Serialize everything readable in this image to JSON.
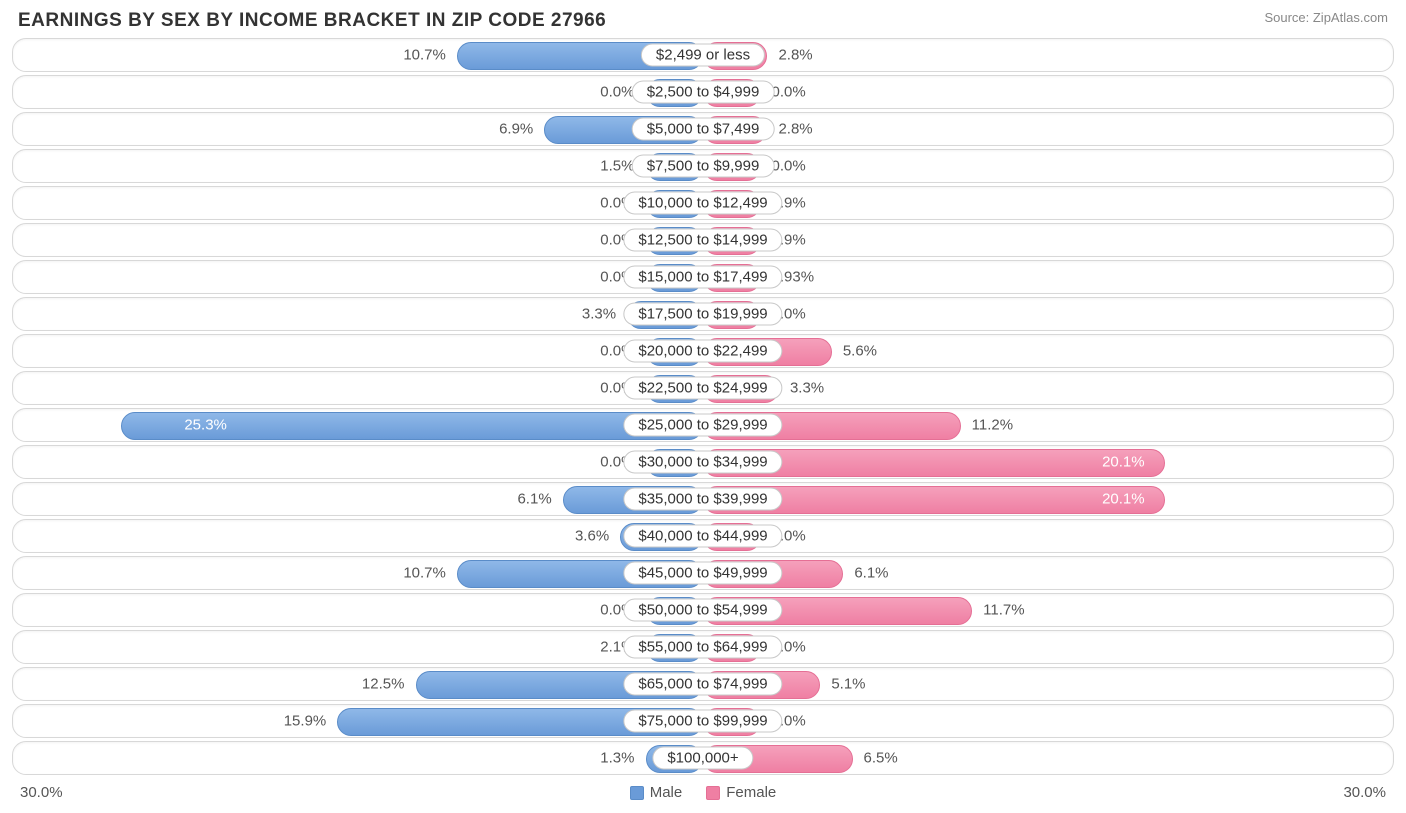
{
  "title": "EARNINGS BY SEX BY INCOME BRACKET IN ZIP CODE 27966",
  "source": "Source: ZipAtlas.com",
  "axis_max_label": "30.0%",
  "axis_max_value": 30.0,
  "legend": {
    "male": "Male",
    "female": "Female"
  },
  "colors": {
    "male_bar": "#6a9bd8",
    "male_border": "#5a8cc8",
    "female_bar": "#ef7fa3",
    "female_border": "#e56f95",
    "track_border": "#d8d8d8",
    "background": "#ffffff",
    "text": "#555555"
  },
  "chart": {
    "type": "diverging-bar",
    "min_bar_pct": 2.5,
    "label_inside_threshold": 18.0,
    "rows": [
      {
        "label": "$2,499 or less",
        "male": 10.7,
        "female": 2.8,
        "male_txt": "10.7%",
        "female_txt": "2.8%"
      },
      {
        "label": "$2,500 to $4,999",
        "male": 0.0,
        "female": 0.0,
        "male_txt": "0.0%",
        "female_txt": "0.0%"
      },
      {
        "label": "$5,000 to $7,499",
        "male": 6.9,
        "female": 2.8,
        "male_txt": "6.9%",
        "female_txt": "2.8%"
      },
      {
        "label": "$7,500 to $9,999",
        "male": 1.5,
        "female": 0.0,
        "male_txt": "1.5%",
        "female_txt": "0.0%"
      },
      {
        "label": "$10,000 to $12,499",
        "male": 0.0,
        "female": 1.9,
        "male_txt": "0.0%",
        "female_txt": "1.9%"
      },
      {
        "label": "$12,500 to $14,999",
        "male": 0.0,
        "female": 1.9,
        "male_txt": "0.0%",
        "female_txt": "1.9%"
      },
      {
        "label": "$15,000 to $17,499",
        "male": 0.0,
        "female": 0.93,
        "male_txt": "0.0%",
        "female_txt": "0.93%"
      },
      {
        "label": "$17,500 to $19,999",
        "male": 3.3,
        "female": 0.0,
        "male_txt": "3.3%",
        "female_txt": "0.0%"
      },
      {
        "label": "$20,000 to $22,499",
        "male": 0.0,
        "female": 5.6,
        "male_txt": "0.0%",
        "female_txt": "5.6%"
      },
      {
        "label": "$22,500 to $24,999",
        "male": 0.0,
        "female": 3.3,
        "male_txt": "0.0%",
        "female_txt": "3.3%"
      },
      {
        "label": "$25,000 to $29,999",
        "male": 25.3,
        "female": 11.2,
        "male_txt": "25.3%",
        "female_txt": "11.2%"
      },
      {
        "label": "$30,000 to $34,999",
        "male": 0.0,
        "female": 20.1,
        "male_txt": "0.0%",
        "female_txt": "20.1%"
      },
      {
        "label": "$35,000 to $39,999",
        "male": 6.1,
        "female": 20.1,
        "male_txt": "6.1%",
        "female_txt": "20.1%"
      },
      {
        "label": "$40,000 to $44,999",
        "male": 3.6,
        "female": 0.0,
        "male_txt": "3.6%",
        "female_txt": "0.0%"
      },
      {
        "label": "$45,000 to $49,999",
        "male": 10.7,
        "female": 6.1,
        "male_txt": "10.7%",
        "female_txt": "6.1%"
      },
      {
        "label": "$50,000 to $54,999",
        "male": 0.0,
        "female": 11.7,
        "male_txt": "0.0%",
        "female_txt": "11.7%"
      },
      {
        "label": "$55,000 to $64,999",
        "male": 2.1,
        "female": 0.0,
        "male_txt": "2.1%",
        "female_txt": "0.0%"
      },
      {
        "label": "$65,000 to $74,999",
        "male": 12.5,
        "female": 5.1,
        "male_txt": "12.5%",
        "female_txt": "5.1%"
      },
      {
        "label": "$75,000 to $99,999",
        "male": 15.9,
        "female": 0.0,
        "male_txt": "15.9%",
        "female_txt": "0.0%"
      },
      {
        "label": "$100,000+",
        "male": 1.3,
        "female": 6.5,
        "male_txt": "1.3%",
        "female_txt": "6.5%"
      }
    ]
  }
}
